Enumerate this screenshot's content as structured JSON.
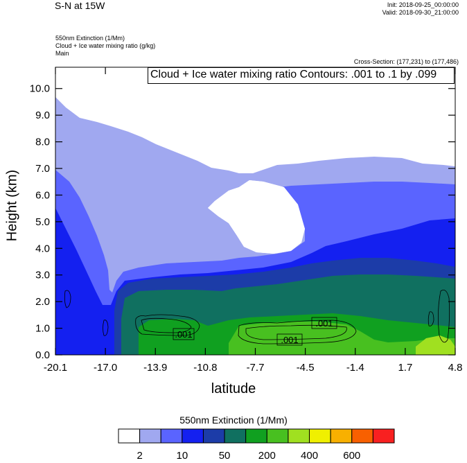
{
  "header": {
    "title": "S-N at 15W",
    "init": "Init: 2018-09-25_00:00:00",
    "valid": "Valid: 2018-09-30_21:00:00",
    "field_lines": [
      "550nm Extinction   (1/Mm)",
      "Cloud + Ice water mixing ratio   (g/kg)",
      "Main"
    ],
    "cross_section": "Cross-Section: (177,231) to (177,486)"
  },
  "chart_data": {
    "type": "heatmap",
    "title": "Cloud + Ice water mixing ratio Contours: .001 to .1 by .099",
    "xlabel": "latitude",
    "ylabel": "Height (km)",
    "x_ticks": [
      "-20.1",
      "-17.0",
      "-13.9",
      "-10.8",
      "-7.7",
      "-4.5",
      "-1.4",
      "1.7",
      "4.8"
    ],
    "y_ticks": [
      "0.0",
      "1.0",
      "2.0",
      "3.0",
      "4.0",
      "5.0",
      "6.0",
      "7.0",
      "8.0",
      "9.0",
      "10.0"
    ],
    "xlim": [
      -20.1,
      4.8
    ],
    "ylim": [
      0,
      10.8
    ],
    "colorbar": {
      "title": "550nm Extinction  (1/Mm)",
      "colors": [
        "#ffffff",
        "#a0a8f0",
        "#5a64ff",
        "#1420f0",
        "#1c3ca8",
        "#107060",
        "#10a020",
        "#48c020",
        "#a0e020",
        "#f0f000",
        "#f8b000",
        "#f86000",
        "#f82020"
      ],
      "labels": [
        "2",
        "10",
        "50",
        "200",
        "400",
        "600"
      ]
    },
    "contour_labels": [
      ".001",
      ".001",
      ".001"
    ]
  }
}
